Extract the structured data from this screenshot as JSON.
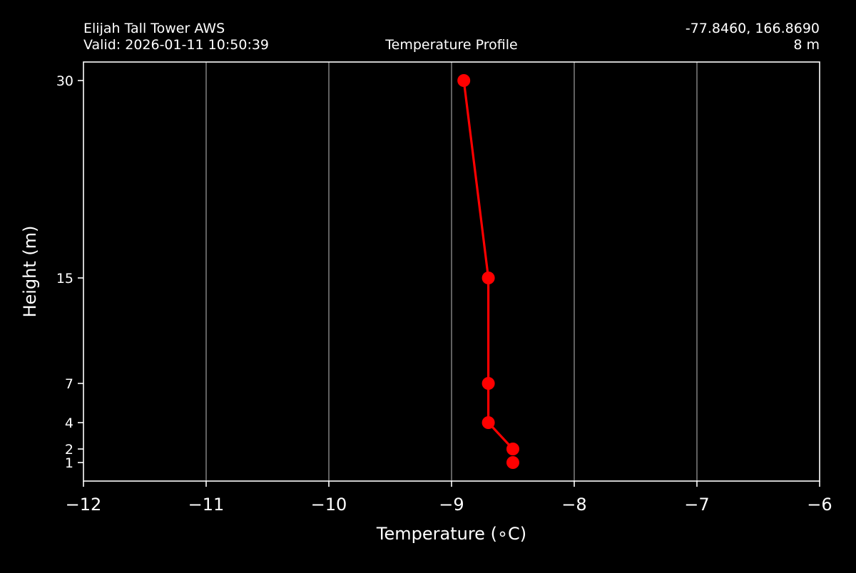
{
  "header": {
    "station_name": "Elijah Tall Tower AWS",
    "valid_time": "Valid: 2026-01-11 10:50:39",
    "coordinates": "-77.8460, 166.8690",
    "elevation": "8 m"
  },
  "chart_data": {
    "type": "line",
    "title": "Temperature Profile",
    "xlabel": "Temperature (∘C)",
    "ylabel": "Height (m)",
    "xlim": [
      -12,
      -6
    ],
    "ylim": [
      0,
      31.5
    ],
    "x_ticks": [
      -12,
      -11,
      -10,
      -9,
      -8,
      -7,
      -6
    ],
    "x_tick_labels": [
      "−12",
      "−11",
      "−10",
      "−9",
      "−8",
      "−7",
      "−6"
    ],
    "y_ticks": [
      1,
      2,
      4,
      7,
      15,
      30
    ],
    "y_tick_labels": [
      "1",
      "2",
      "4",
      "7",
      "15",
      "30"
    ],
    "y_scale": "custom-stretched (ticks at 1, 2, 4, 7, 15, 30 m)",
    "grid": "vertical lines at x ticks",
    "series": [
      {
        "color": "#ff0000",
        "points": [
          {
            "height": 1,
            "temperature": -8.5
          },
          {
            "height": 2,
            "temperature": -8.5
          },
          {
            "height": 4,
            "temperature": -8.7
          },
          {
            "height": 7,
            "temperature": -8.7
          },
          {
            "height": 15,
            "temperature": -8.7
          },
          {
            "height": 30,
            "temperature": -8.9
          }
        ],
        "line_segments": [
          [
            2,
            4
          ],
          [
            4,
            7
          ],
          [
            7,
            15
          ],
          [
            15,
            30
          ]
        ]
      }
    ]
  },
  "colors": {
    "background": "#000000",
    "foreground": "#ffffff",
    "grid": "#808080",
    "series": "#ff0000"
  }
}
